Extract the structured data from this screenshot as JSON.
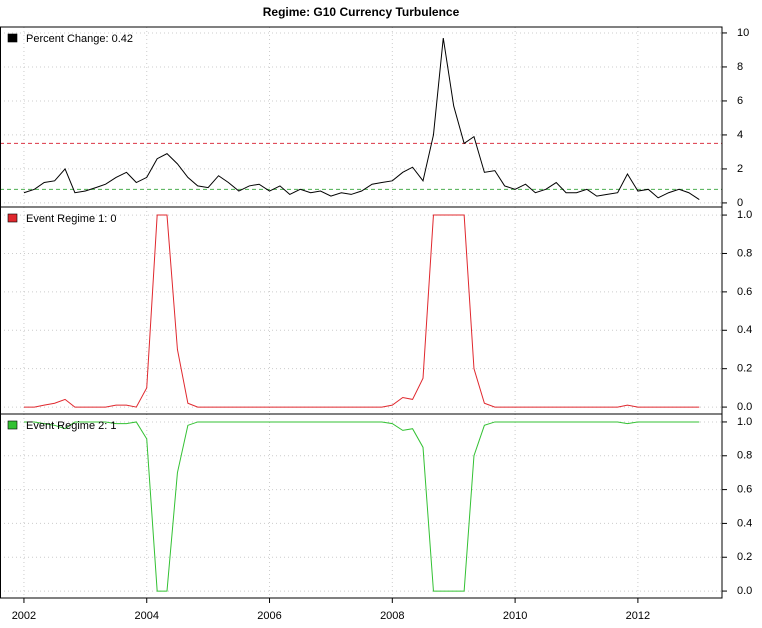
{
  "chart_data": {
    "type": "line",
    "title": "Regime: G10 Currency Turbulence",
    "x": [
      2002,
      2002.17,
      2002.33,
      2002.5,
      2002.67,
      2002.83,
      2003,
      2003.17,
      2003.33,
      2003.5,
      2003.67,
      2003.83,
      2004,
      2004.17,
      2004.33,
      2004.5,
      2004.67,
      2004.83,
      2005,
      2005.17,
      2005.33,
      2005.5,
      2005.67,
      2005.83,
      2006,
      2006.17,
      2006.33,
      2006.5,
      2006.67,
      2006.83,
      2007,
      2007.17,
      2007.33,
      2007.5,
      2007.67,
      2007.83,
      2008,
      2008.17,
      2008.33,
      2008.5,
      2008.67,
      2008.83,
      2009,
      2009.17,
      2009.33,
      2009.5,
      2009.67,
      2009.83,
      2010,
      2010.17,
      2010.33,
      2010.5,
      2010.67,
      2010.83,
      2011,
      2011.17,
      2011.33,
      2011.5,
      2011.67,
      2011.83,
      2012,
      2012.17,
      2012.33,
      2012.5,
      2012.67,
      2012.83,
      2013
    ],
    "xlim": [
      2001.61,
      2013.37
    ],
    "xticks": [
      2002,
      2004,
      2006,
      2008,
      2010,
      2012
    ],
    "grid": true,
    "series": [
      {
        "name": "Percent Change: 0.42",
        "color": "#000000",
        "values": [
          0.6,
          0.8,
          1.2,
          1.3,
          2.0,
          0.6,
          0.7,
          0.9,
          1.1,
          1.5,
          1.8,
          1.2,
          1.5,
          2.6,
          2.9,
          2.3,
          1.5,
          1.0,
          0.9,
          1.6,
          1.2,
          0.7,
          1.0,
          1.1,
          0.7,
          1.0,
          0.5,
          0.8,
          0.6,
          0.7,
          0.4,
          0.6,
          0.5,
          0.7,
          1.1,
          1.2,
          1.3,
          1.8,
          2.1,
          1.3,
          4.0,
          9.7,
          5.7,
          3.5,
          3.9,
          1.8,
          1.9,
          1.0,
          0.8,
          1.1,
          0.6,
          0.8,
          1.2,
          0.6,
          0.6,
          0.8,
          0.4,
          0.5,
          0.6,
          1.7,
          0.7,
          0.8,
          0.3,
          0.6,
          0.8,
          0.6,
          0.2
        ],
        "ylim": [
          -0.24,
          10.35
        ],
        "yticks": [
          0,
          2,
          4,
          6,
          8,
          10
        ],
        "hlines": [
          {
            "value": 3.5,
            "color": "#dc3545"
          },
          {
            "value": 0.8,
            "color": "#4caf50"
          }
        ]
      },
      {
        "name": "Event Regime 1: 0",
        "color": "#e0282e",
        "values": [
          0,
          0,
          0.01,
          0.02,
          0.04,
          0,
          0,
          0,
          0,
          0.01,
          0.01,
          0,
          0.1,
          1.0,
          1.0,
          0.3,
          0.02,
          0,
          0,
          0,
          0,
          0,
          0,
          0,
          0,
          0,
          0,
          0,
          0,
          0,
          0,
          0,
          0,
          0,
          0,
          0,
          0.01,
          0.05,
          0.04,
          0.15,
          1.0,
          1.0,
          1.0,
          1.0,
          0.2,
          0.02,
          0,
          0,
          0,
          0,
          0,
          0,
          0,
          0,
          0,
          0,
          0,
          0,
          0,
          0.01,
          0,
          0,
          0,
          0,
          0,
          0,
          0
        ],
        "ylim": [
          -0.036,
          1.042
        ],
        "yticks": [
          {
            "value": 0,
            "label": "0.0"
          },
          0.2,
          0.4,
          0.6,
          0.8,
          {
            "value": 1,
            "label": "1.0"
          }
        ]
      },
      {
        "name": "Event Regime 2: 1",
        "color": "#33c133",
        "values": [
          1,
          1,
          0.99,
          0.98,
          0.96,
          1,
          1,
          1,
          1,
          0.99,
          0.99,
          1,
          0.9,
          0,
          0,
          0.7,
          0.98,
          1,
          1,
          1,
          1,
          1,
          1,
          1,
          1,
          1,
          1,
          1,
          1,
          1,
          1,
          1,
          1,
          1,
          1,
          1,
          0.99,
          0.95,
          0.96,
          0.85,
          0,
          0,
          0,
          0,
          0.8,
          0.98,
          1,
          1,
          1,
          1,
          1,
          1,
          1,
          1,
          1,
          1,
          1,
          1,
          1,
          0.99,
          1,
          1,
          1,
          1,
          1,
          1,
          1
        ],
        "ylim": [
          -0.041,
          1.047
        ],
        "yticks": [
          {
            "value": 0,
            "label": "0.0"
          },
          0.2,
          0.4,
          0.6,
          0.8,
          {
            "value": 1,
            "label": "1.0"
          }
        ]
      }
    ]
  }
}
